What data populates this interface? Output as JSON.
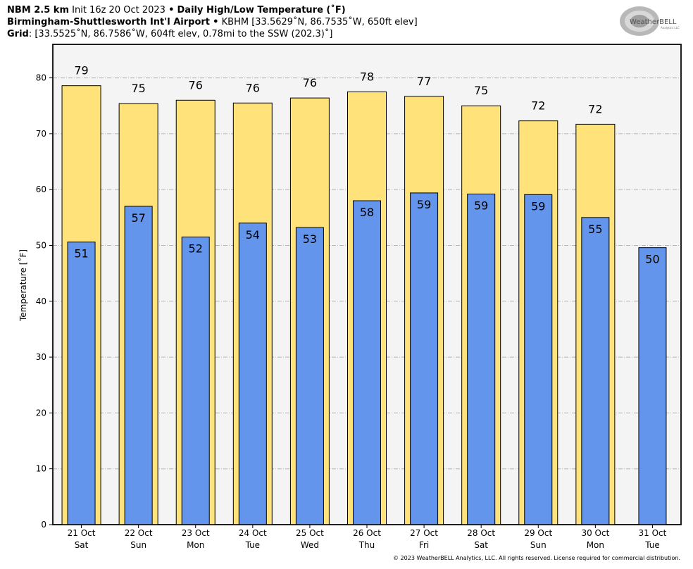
{
  "header": {
    "line1_bold_a": "NBM 2.5 km",
    "line1_normal": "Init 16z 20 Oct 2023",
    "line1_sep": "•",
    "line1_bold_b": "Daily High/Low Temperature (˚F)",
    "line2_bold": "Birmingham-Shuttlesworth Int'l Airport",
    "line2_sep": "•",
    "line2_normal": "KBHM [33.5629˚N, 86.7535˚W, 650ft elev]",
    "line3_bold": "Grid",
    "line3_normal": ": [33.5525˚N, 86.7586˚W, 604ft elev, 0.78mi to the SSW (202.3)˚]"
  },
  "logo": {
    "text": "WeatherBELL",
    "subtext": "Analytics LLC"
  },
  "footer": "© 2023 WeatherBELL Analytics, LLC. All rights reserved. License required for commercial distribution.",
  "chart_data": {
    "type": "bar",
    "categories": [
      "21 Oct\nSat",
      "22 Oct\nSun",
      "23 Oct\nMon",
      "24 Oct\nTue",
      "25 Oct\nWed",
      "26 Oct\nThu",
      "27 Oct\nFri",
      "28 Oct\nSat",
      "29 Oct\nSun",
      "30 Oct\nMon",
      "31 Oct\nTue"
    ],
    "category_lines": [
      [
        "21 Oct",
        "Sat"
      ],
      [
        "22 Oct",
        "Sun"
      ],
      [
        "23 Oct",
        "Mon"
      ],
      [
        "24 Oct",
        "Tue"
      ],
      [
        "25 Oct",
        "Wed"
      ],
      [
        "26 Oct",
        "Thu"
      ],
      [
        "27 Oct",
        "Fri"
      ],
      [
        "28 Oct",
        "Sat"
      ],
      [
        "29 Oct",
        "Sun"
      ],
      [
        "30 Oct",
        "Mon"
      ],
      [
        "31 Oct",
        "Tue"
      ]
    ],
    "series": [
      {
        "values": [
          78.6,
          75.4,
          76.0,
          75.5,
          76.4,
          77.5,
          76.7,
          75.0,
          72.3,
          71.7,
          null
        ],
        "labels": [
          "79",
          "75",
          "76",
          "76",
          "76",
          "78",
          "77",
          "75",
          "72",
          "72",
          ""
        ],
        "color": "#ffe37a"
      },
      {
        "values": [
          50.6,
          57.0,
          51.5,
          54.0,
          53.2,
          58.0,
          59.4,
          59.2,
          59.1,
          55.0,
          49.6
        ],
        "labels": [
          "51",
          "57",
          "52",
          "54",
          "53",
          "58",
          "59",
          "59",
          "59",
          "55",
          "50"
        ],
        "color": "#6495ed"
      }
    ],
    "ylabel": "Temperature [˚F]",
    "ylim": [
      0,
      86
    ],
    "yticks": [
      0,
      10,
      20,
      30,
      40,
      50,
      60,
      70,
      80
    ],
    "grid": true,
    "plot_background": "#f4f4f4"
  }
}
